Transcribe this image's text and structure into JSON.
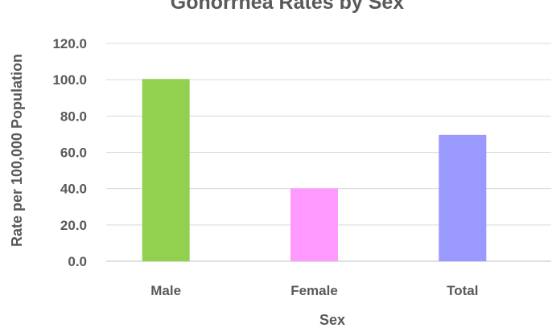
{
  "chart_data": {
    "type": "bar",
    "title": "Gonorrhea Rates by Sex",
    "xlabel": "Sex",
    "ylabel": "Rate per 100,000 Population",
    "categories": [
      "Male",
      "Female",
      "Total"
    ],
    "values": [
      100.4,
      40.1,
      69.6
    ],
    "colors": [
      "#92d050",
      "#ff99ff",
      "#9999ff"
    ],
    "ylim": [
      0,
      120
    ],
    "yticks": [
      "0.0",
      "20.0",
      "40.0",
      "60.0",
      "80.0",
      "100.0",
      "120.0"
    ],
    "grid": true,
    "legend": "none"
  }
}
